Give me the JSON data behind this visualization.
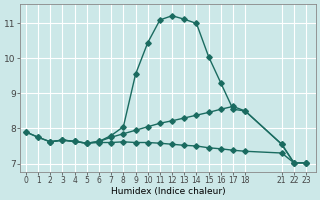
{
  "xlabel": "Humidex (Indice chaleur)",
  "bg_color": "#cce8e8",
  "grid_color": "#ffffff",
  "line_color": "#1a6b60",
  "line1_x": [
    0,
    1,
    2,
    3,
    4,
    5,
    6,
    7,
    8,
    9,
    10,
    11,
    12,
    13,
    14,
    15,
    16,
    17,
    18,
    21,
    22,
    23
  ],
  "line1_y": [
    7.9,
    7.75,
    7.62,
    7.67,
    7.63,
    7.58,
    7.63,
    7.75,
    7.85,
    7.95,
    8.05,
    8.15,
    8.22,
    8.3,
    8.38,
    8.46,
    8.55,
    8.63,
    8.5,
    7.55,
    7.02,
    7.02
  ],
  "line2_x": [
    0,
    1,
    2,
    3,
    4,
    5,
    6,
    7,
    8,
    9,
    10,
    11,
    12,
    13,
    14,
    15,
    16,
    17,
    18,
    21,
    22,
    23
  ],
  "line2_y": [
    7.9,
    7.75,
    7.62,
    7.67,
    7.63,
    7.58,
    7.63,
    7.8,
    8.05,
    9.55,
    10.45,
    11.1,
    11.22,
    11.12,
    11.0,
    10.05,
    9.3,
    8.55,
    8.5,
    7.55,
    7.02,
    7.02
  ],
  "line3_x": [
    2,
    3,
    4,
    5,
    6,
    7,
    8,
    9,
    10,
    11,
    12,
    13,
    14,
    15,
    16,
    17,
    18,
    21,
    22,
    23
  ],
  "line3_y": [
    7.62,
    7.67,
    7.63,
    7.58,
    7.6,
    7.6,
    7.62,
    7.6,
    7.6,
    7.58,
    7.55,
    7.52,
    7.5,
    7.45,
    7.42,
    7.38,
    7.35,
    7.3,
    7.02,
    7.02
  ],
  "yticks": [
    7,
    8,
    9,
    10,
    11
  ],
  "xtick_labels": [
    "0",
    "1",
    "2",
    "3",
    "4",
    "5",
    "6",
    "7",
    "8",
    "9",
    "10",
    "11",
    "12",
    "13",
    "14",
    "15",
    "16",
    "17",
    "18",
    "21",
    "22",
    "23"
  ],
  "xtick_positions": [
    0,
    1,
    2,
    3,
    4,
    5,
    6,
    7,
    8,
    9,
    10,
    11,
    12,
    13,
    14,
    15,
    16,
    17,
    18,
    21,
    22,
    23
  ],
  "xlim": [
    -0.5,
    23.8
  ],
  "ylim": [
    6.75,
    11.55
  ]
}
